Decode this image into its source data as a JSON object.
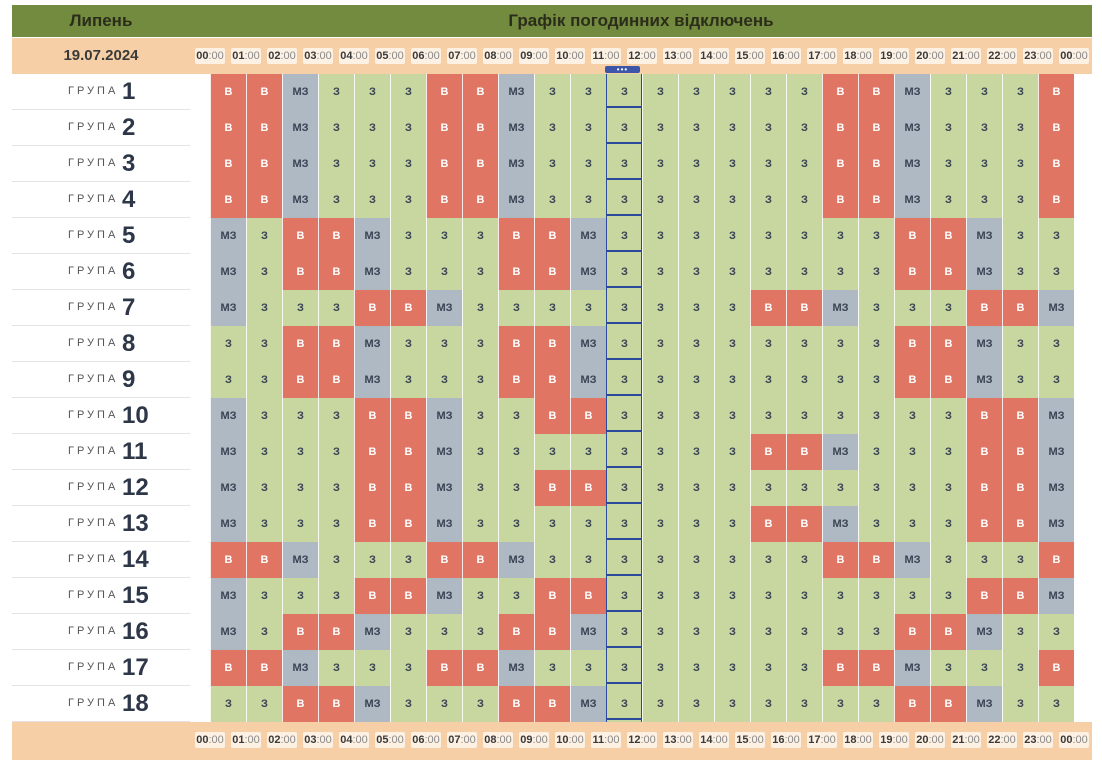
{
  "header": {
    "month": "Липень",
    "title": "Графік погодинних відключень",
    "date": "19.07.2024"
  },
  "hours": [
    "00",
    "01",
    "02",
    "03",
    "04",
    "05",
    "06",
    "07",
    "08",
    "09",
    "10",
    "11",
    "12",
    "13",
    "14",
    "15",
    "16",
    "17",
    "18",
    "19",
    "20",
    "21",
    "22",
    "23",
    "00"
  ],
  "minutes": ":00",
  "group_word": "ГРУПА",
  "legend": {
    "v": "В",
    "mz": "МЗ",
    "z": "З"
  },
  "colors": {
    "v": "#e07563",
    "mz": "#aeb9c3",
    "z": "#c8d7a0",
    "header": "#738b3e",
    "band": "#f6cfa6",
    "now": "#2b4a9b"
  },
  "current_hour_index": 11,
  "groups": [
    {
      "num": "1",
      "cells": [
        "В",
        "В",
        "МЗ",
        "З",
        "З",
        "З",
        "В",
        "В",
        "МЗ",
        "З",
        "З",
        "З",
        "З",
        "З",
        "З",
        "З",
        "З",
        "В",
        "В",
        "МЗ",
        "З",
        "З",
        "З",
        "В"
      ]
    },
    {
      "num": "2",
      "cells": [
        "В",
        "В",
        "МЗ",
        "З",
        "З",
        "З",
        "В",
        "В",
        "МЗ",
        "З",
        "З",
        "З",
        "З",
        "З",
        "З",
        "З",
        "З",
        "В",
        "В",
        "МЗ",
        "З",
        "З",
        "З",
        "В"
      ]
    },
    {
      "num": "3",
      "cells": [
        "В",
        "В",
        "МЗ",
        "З",
        "З",
        "З",
        "В",
        "В",
        "МЗ",
        "З",
        "З",
        "З",
        "З",
        "З",
        "З",
        "З",
        "З",
        "В",
        "В",
        "МЗ",
        "З",
        "З",
        "З",
        "В"
      ]
    },
    {
      "num": "4",
      "cells": [
        "В",
        "В",
        "МЗ",
        "З",
        "З",
        "З",
        "В",
        "В",
        "МЗ",
        "З",
        "З",
        "З",
        "З",
        "З",
        "З",
        "З",
        "З",
        "В",
        "В",
        "МЗ",
        "З",
        "З",
        "З",
        "В"
      ]
    },
    {
      "num": "5",
      "cells": [
        "МЗ",
        "З",
        "В",
        "В",
        "МЗ",
        "З",
        "З",
        "З",
        "В",
        "В",
        "МЗ",
        "З",
        "З",
        "З",
        "З",
        "З",
        "З",
        "З",
        "З",
        "В",
        "В",
        "МЗ",
        "З",
        "З"
      ]
    },
    {
      "num": "6",
      "cells": [
        "МЗ",
        "З",
        "В",
        "В",
        "МЗ",
        "З",
        "З",
        "З",
        "В",
        "В",
        "МЗ",
        "З",
        "З",
        "З",
        "З",
        "З",
        "З",
        "З",
        "З",
        "В",
        "В",
        "МЗ",
        "З",
        "З"
      ]
    },
    {
      "num": "7",
      "cells": [
        "МЗ",
        "З",
        "З",
        "З",
        "В",
        "В",
        "МЗ",
        "З",
        "З",
        "З",
        "З",
        "З",
        "З",
        "З",
        "З",
        "В",
        "В",
        "МЗ",
        "З",
        "З",
        "З",
        "В",
        "В",
        "МЗ"
      ]
    },
    {
      "num": "8",
      "cells": [
        "З",
        "З",
        "В",
        "В",
        "МЗ",
        "З",
        "З",
        "З",
        "В",
        "В",
        "МЗ",
        "З",
        "З",
        "З",
        "З",
        "З",
        "З",
        "З",
        "З",
        "В",
        "В",
        "МЗ",
        "З",
        "З"
      ]
    },
    {
      "num": "9",
      "cells": [
        "З",
        "З",
        "В",
        "В",
        "МЗ",
        "З",
        "З",
        "З",
        "В",
        "В",
        "МЗ",
        "З",
        "З",
        "З",
        "З",
        "З",
        "З",
        "З",
        "З",
        "В",
        "В",
        "МЗ",
        "З",
        "З"
      ]
    },
    {
      "num": "10",
      "cells": [
        "МЗ",
        "З",
        "З",
        "З",
        "В",
        "В",
        "МЗ",
        "З",
        "З",
        "В",
        "В",
        "З",
        "З",
        "З",
        "З",
        "З",
        "З",
        "З",
        "З",
        "З",
        "З",
        "В",
        "В",
        "МЗ"
      ]
    },
    {
      "num": "11",
      "cells": [
        "МЗ",
        "З",
        "З",
        "З",
        "В",
        "В",
        "МЗ",
        "З",
        "З",
        "З",
        "З",
        "З",
        "З",
        "З",
        "З",
        "В",
        "В",
        "МЗ",
        "З",
        "З",
        "З",
        "В",
        "В",
        "МЗ"
      ]
    },
    {
      "num": "12",
      "cells": [
        "МЗ",
        "З",
        "З",
        "З",
        "В",
        "В",
        "МЗ",
        "З",
        "З",
        "В",
        "В",
        "З",
        "З",
        "З",
        "З",
        "З",
        "З",
        "З",
        "З",
        "З",
        "З",
        "В",
        "В",
        "МЗ"
      ]
    },
    {
      "num": "13",
      "cells": [
        "МЗ",
        "З",
        "З",
        "З",
        "В",
        "В",
        "МЗ",
        "З",
        "З",
        "З",
        "З",
        "З",
        "З",
        "З",
        "З",
        "В",
        "В",
        "МЗ",
        "З",
        "З",
        "З",
        "В",
        "В",
        "МЗ"
      ]
    },
    {
      "num": "14",
      "cells": [
        "В",
        "В",
        "МЗ",
        "З",
        "З",
        "З",
        "В",
        "В",
        "МЗ",
        "З",
        "З",
        "З",
        "З",
        "З",
        "З",
        "З",
        "З",
        "В",
        "В",
        "МЗ",
        "З",
        "З",
        "З",
        "В"
      ]
    },
    {
      "num": "15",
      "cells": [
        "МЗ",
        "З",
        "З",
        "З",
        "В",
        "В",
        "МЗ",
        "З",
        "З",
        "В",
        "В",
        "З",
        "З",
        "З",
        "З",
        "З",
        "З",
        "З",
        "З",
        "З",
        "З",
        "В",
        "В",
        "МЗ"
      ]
    },
    {
      "num": "16",
      "cells": [
        "МЗ",
        "З",
        "В",
        "В",
        "МЗ",
        "З",
        "З",
        "З",
        "В",
        "В",
        "МЗ",
        "З",
        "З",
        "З",
        "З",
        "З",
        "З",
        "З",
        "З",
        "В",
        "В",
        "МЗ",
        "З",
        "З"
      ]
    },
    {
      "num": "17",
      "cells": [
        "В",
        "В",
        "МЗ",
        "З",
        "З",
        "З",
        "В",
        "В",
        "МЗ",
        "З",
        "З",
        "З",
        "З",
        "З",
        "З",
        "З",
        "З",
        "В",
        "В",
        "МЗ",
        "З",
        "З",
        "З",
        "В"
      ]
    },
    {
      "num": "18",
      "cells": [
        "З",
        "З",
        "В",
        "В",
        "МЗ",
        "З",
        "З",
        "З",
        "В",
        "В",
        "МЗ",
        "З",
        "З",
        "З",
        "З",
        "З",
        "З",
        "З",
        "З",
        "В",
        "В",
        "МЗ",
        "З",
        "З"
      ]
    }
  ]
}
